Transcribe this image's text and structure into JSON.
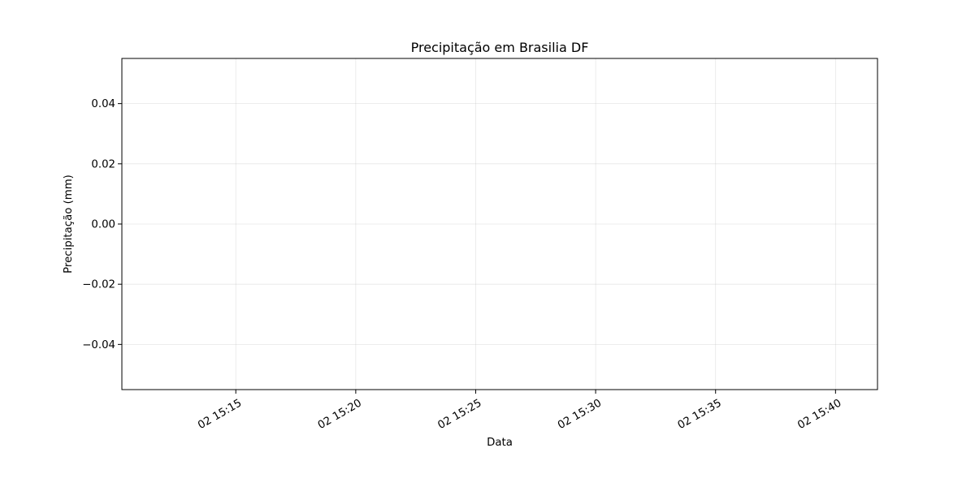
{
  "chart_data": {
    "type": "line",
    "title": "Precipitação em Brasilia DF",
    "xlabel": "Data",
    "ylabel": "Precipitação (mm)",
    "x_ticks": [
      "02 15:15",
      "02 15:20",
      "02 15:25",
      "02 15:30",
      "02 15:35",
      "02 15:40"
    ],
    "y_ticks": [
      "0.04",
      "0.02",
      "0.00",
      "−0.02",
      "−0.04"
    ],
    "y_tick_values": [
      0.04,
      0.02,
      0.0,
      -0.02,
      -0.04
    ],
    "ylim": [
      -0.055,
      0.055
    ],
    "xlim": [
      "02 15:10:15",
      "02 15:41:45"
    ],
    "grid": true,
    "grid_color": "#b0b0b0",
    "series": []
  }
}
